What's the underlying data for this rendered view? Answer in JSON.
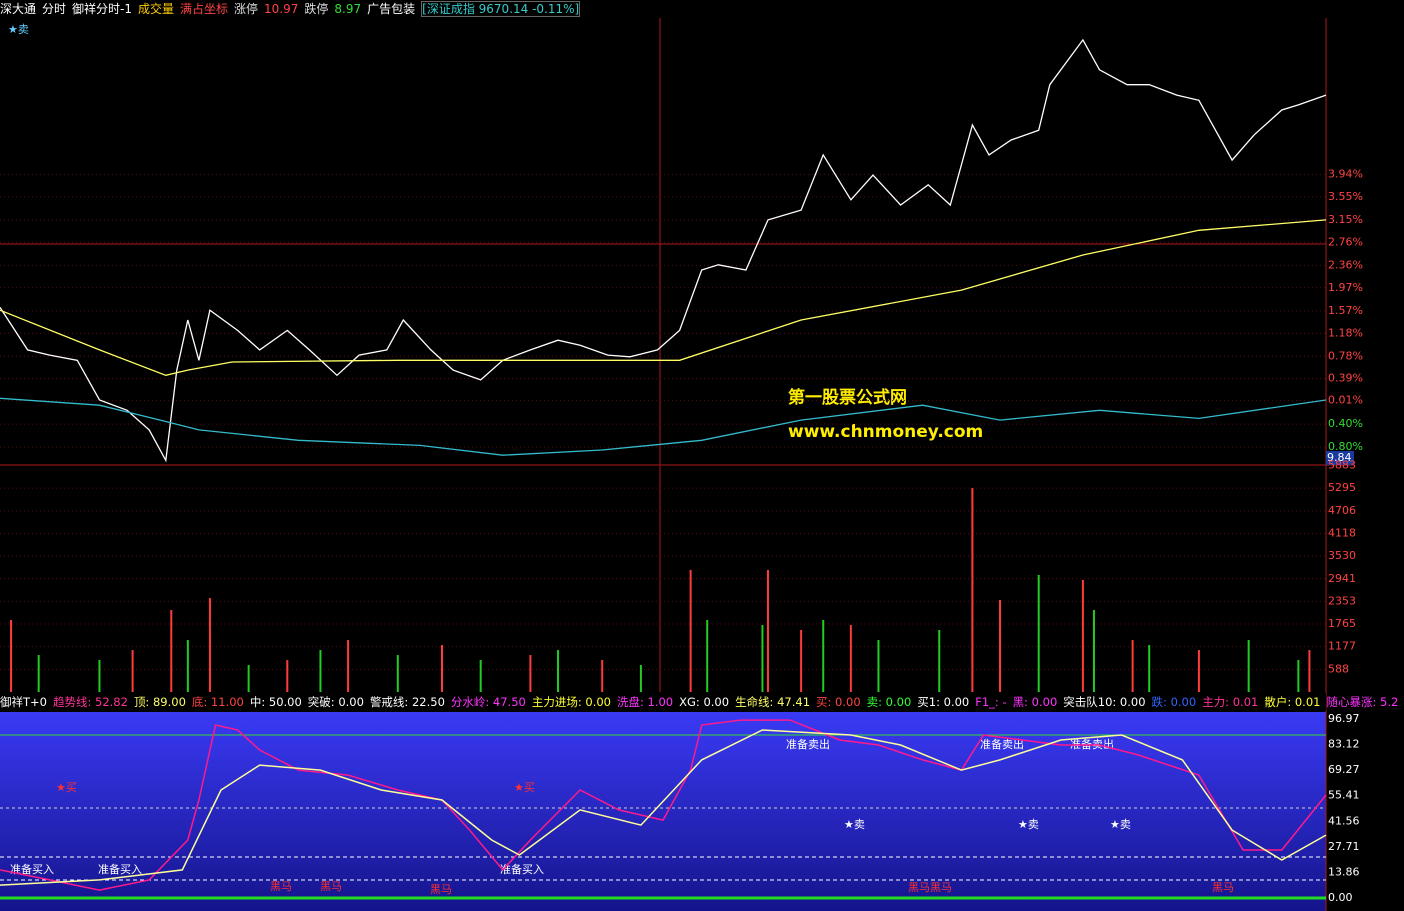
{
  "header": {
    "items": [
      "深大通",
      "分时",
      "御祥分时-1",
      "成交量",
      "满占坐标",
      "涨停",
      "10.97",
      "跌停",
      "8.97",
      "广告包装",
      "[深证成指 9670.14 -0.11%]"
    ]
  },
  "price_chart": {
    "type": "line",
    "xlim": [
      0,
      240
    ],
    "ylim": [
      -1.11,
      6.66
    ],
    "yticks": [
      {
        "value": 3.94,
        "label": "3.94%"
      },
      {
        "value": 3.55,
        "label": "3.55%"
      },
      {
        "value": 3.15,
        "label": "3.15%"
      },
      {
        "value": 2.76,
        "label": "2.76%"
      },
      {
        "value": 2.36,
        "label": "2.36%"
      },
      {
        "value": 1.97,
        "label": "1.97%"
      },
      {
        "value": 1.57,
        "label": "1.57%"
      },
      {
        "value": 1.18,
        "label": "1.18%"
      },
      {
        "value": 0.78,
        "label": "0.78%"
      },
      {
        "value": 0.39,
        "label": "0.39%"
      },
      {
        "value": 0.01,
        "label": "0.01%"
      },
      {
        "value": -0.4,
        "label": "0.40%"
      },
      {
        "value": -0.8,
        "label": "0.80%"
      }
    ],
    "series": [
      {
        "color": "#ffffff",
        "x": [
          0,
          5,
          9,
          14,
          18,
          23,
          27,
          30,
          32,
          34,
          36,
          38,
          43,
          47,
          52,
          56,
          61,
          65,
          70,
          73,
          78,
          82,
          87,
          91,
          96,
          101,
          105,
          110,
          114,
          119,
          123,
          127,
          130,
          135,
          139,
          145,
          149,
          154,
          158,
          163,
          168,
          172,
          176,
          179,
          183,
          188,
          190,
          196,
          199,
          204,
          208,
          213,
          217,
          223,
          227,
          232,
          235,
          240
        ],
        "values": [
          1.63,
          0.89,
          0.8,
          0.71,
          0.02,
          -0.16,
          -0.5,
          -1.03,
          0.54,
          1.41,
          0.71,
          1.58,
          1.23,
          0.89,
          1.23,
          0.89,
          0.45,
          0.8,
          0.89,
          1.41,
          0.89,
          0.54,
          0.37,
          0.71,
          0.89,
          1.06,
          0.97,
          0.8,
          0.77,
          0.89,
          1.23,
          2.28,
          2.37,
          2.28,
          3.15,
          3.32,
          4.28,
          3.5,
          3.93,
          3.41,
          3.76,
          3.41,
          4.8,
          4.28,
          4.54,
          4.71,
          5.5,
          6.28,
          5.76,
          5.5,
          5.5,
          5.32,
          5.23,
          4.19,
          4.63,
          5.06,
          5.15,
          5.32
        ]
      },
      {
        "color": "#ffff66",
        "x": [
          0,
          18,
          30,
          34,
          42,
          72,
          123,
          145,
          174,
          196,
          217,
          240
        ],
        "values": [
          1.58,
          0.89,
          0.45,
          0.54,
          0.68,
          0.71,
          0.71,
          1.41,
          1.93,
          2.54,
          2.97,
          3.15
        ]
      },
      {
        "color": "#33bbcc",
        "x": [
          0,
          18,
          29,
          36,
          54,
          76,
          91,
          109,
          127,
          145,
          167,
          181,
          199,
          217,
          240
        ],
        "values": [
          0.05,
          -0.07,
          -0.33,
          -0.5,
          -0.68,
          -0.77,
          -0.94,
          -0.85,
          -0.68,
          -0.33,
          -0.07,
          -0.33,
          -0.16,
          -0.3,
          0.02
        ]
      }
    ],
    "last_label": "9.84",
    "corner_label": "★卖",
    "watermark": [
      "第一股票公式网",
      "www.chnmoney.com"
    ]
  },
  "volume_chart": {
    "type": "bar",
    "xlim": [
      0,
      240
    ],
    "ylim": [
      0,
      6000
    ],
    "yticks": [
      5883,
      5295,
      4706,
      4118,
      3530,
      2941,
      2353,
      1765,
      1177,
      588
    ],
    "series": [
      {
        "color": "#ff3b3b",
        "x": [
          2,
          24,
          31,
          38,
          52,
          63,
          80,
          96,
          109,
          125,
          139,
          145,
          154,
          176,
          181,
          196,
          205,
          217,
          237
        ],
        "values": [
          1870,
          1090,
          2130,
          2440,
          830,
          1350,
          1220,
          960,
          830,
          3170,
          3170,
          1610,
          1740,
          5300,
          2390,
          2910,
          1350,
          1090,
          1090
        ]
      },
      {
        "color": "#22cc22",
        "x": [
          7,
          18,
          34,
          45,
          58,
          72,
          87,
          101,
          116,
          128,
          138,
          149,
          159,
          170,
          188,
          198,
          208,
          226,
          235
        ],
        "values": [
          960,
          830,
          1350,
          700,
          1090,
          960,
          830,
          1090,
          700,
          1870,
          1740,
          1870,
          1350,
          1610,
          3040,
          2130,
          1220,
          1350,
          830
        ]
      }
    ]
  },
  "indicator_header": {
    "items": [
      "御祥T+0",
      "趋势线: 52.82",
      "顶: 89.00",
      "底: 11.00",
      "中: 50.00",
      "突破: 0.00",
      "警戒线: 22.50",
      "分水岭: 47.50",
      "主力进场: 0.00",
      "洗盘: 1.00",
      "XG: 0.00",
      "生命线: 47.41",
      "买: 0.00",
      "卖: 0.00",
      "买1: 0.00",
      "F1_: -",
      "黑: 0.00",
      "突击队10: 0.00",
      "跌: 0.00",
      "主力: 0.01",
      "散户: 0.01",
      "随心暴涨: 5.2"
    ]
  },
  "indicator_chart": {
    "type": "line",
    "xlim": [
      0,
      240
    ],
    "ylim": [
      0,
      96.97
    ],
    "yticks": [
      96.97,
      83.12,
      69.27,
      55.41,
      41.56,
      27.71,
      13.86,
      {
        "value": 0,
        "label": "0.00"
      }
    ],
    "series": [
      {
        "color": "#ff1a8c",
        "x": [
          0,
          9,
          18,
          27,
          34,
          36,
          39,
          43,
          47,
          54,
          63,
          72,
          80,
          85,
          91,
          96,
          105,
          112,
          120,
          125,
          127,
          134,
          143,
          152,
          159,
          167,
          174,
          178,
          185,
          192,
          199,
          206,
          217,
          225,
          232,
          240
        ],
        "values": [
          15.2,
          9.8,
          4.3,
          9.8,
          31.4,
          53.1,
          93.7,
          91.0,
          80.2,
          69.3,
          66.6,
          58.5,
          53.1,
          36.8,
          15.2,
          31.4,
          58.5,
          47.7,
          42.2,
          69.3,
          93.7,
          96.4,
          96.4,
          85.6,
          82.9,
          74.8,
          69.3,
          88.3,
          85.6,
          82.9,
          82.9,
          77.5,
          66.6,
          26.0,
          26.0,
          55.8
        ]
      },
      {
        "color": "#ffff99",
        "x": [
          0,
          18,
          33,
          40,
          47,
          58,
          69,
          80,
          89,
          94,
          105,
          116,
          127,
          138,
          154,
          163,
          174,
          181,
          192,
          203,
          214,
          223,
          232,
          240
        ],
        "values": [
          7.0,
          9.8,
          15.2,
          58.5,
          72.0,
          69.3,
          58.5,
          53.1,
          31.4,
          23.3,
          47.7,
          39.5,
          74.8,
          91.0,
          88.3,
          82.9,
          69.3,
          74.8,
          85.6,
          88.3,
          74.8,
          36.8,
          20.6,
          34.1
        ]
      }
    ],
    "annotations": [
      "准备买入",
      "准备买入",
      "准备买入",
      "准备卖出",
      "准备卖出",
      "准备卖出",
      "★卖",
      "★卖",
      "★卖",
      "★买",
      "★买",
      "黑马",
      "黑马",
      "黑马",
      "黑马黑马",
      "黑马"
    ]
  }
}
